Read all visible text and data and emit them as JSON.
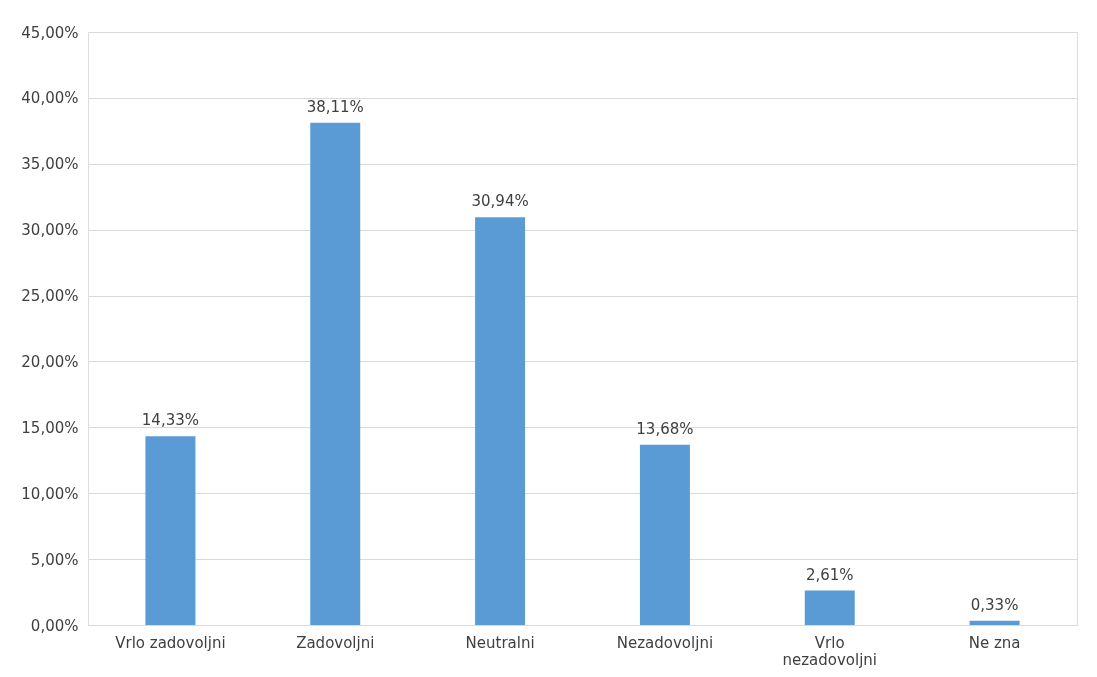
{
  "chart_data": {
    "type": "bar",
    "categories": [
      "Vrlo zadovoljni",
      "Zadovoljni",
      "Neutralni",
      "Nezadovoljni",
      "Vrlo nezadovoljni",
      "Ne zna"
    ],
    "values": [
      14.33,
      38.11,
      30.94,
      13.68,
      2.61,
      0.33
    ],
    "value_labels": [
      "14,33%",
      "38,11%",
      "30,94%",
      "13,68%",
      "2,61%",
      "0,33%"
    ],
    "color": "#5b9bd5",
    "ylim": [
      0,
      45
    ],
    "yticks": [
      {
        "value": 0,
        "label": "0,00%"
      },
      {
        "value": 5,
        "label": "5,00%"
      },
      {
        "value": 10,
        "label": "10,00%"
      },
      {
        "value": 15,
        "label": "15,00%"
      },
      {
        "value": 20,
        "label": "20,00%"
      },
      {
        "value": 25,
        "label": "25,00%"
      },
      {
        "value": 30,
        "label": "30,00%"
      },
      {
        "value": 35,
        "label": "35,00%"
      },
      {
        "value": 40,
        "label": "40,00%"
      },
      {
        "value": 45,
        "label": "45,00%"
      }
    ],
    "grid": "y"
  }
}
